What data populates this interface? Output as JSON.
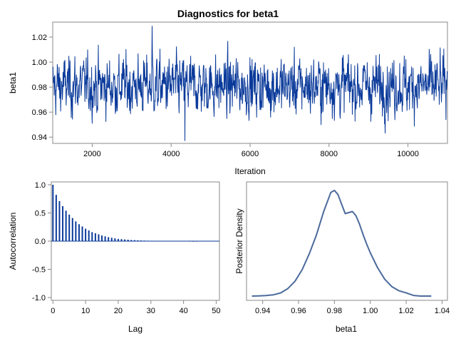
{
  "colors": {
    "trace": "#0a3a9a",
    "bars": "#0a3a9a",
    "density": "#4b6a9b",
    "frame": "#8a8a8a",
    "background": "#ffffff"
  },
  "chart_data": [
    {
      "type": "line",
      "name": "trace-plot",
      "title": "Diagnostics for beta1",
      "xlabel": "Iteration",
      "ylabel": "beta1",
      "xlim": [
        1000,
        11000
      ],
      "ylim": [
        0.935,
        1.032
      ],
      "xticks": [
        "2000",
        "4000",
        "6000",
        "8000",
        "10000"
      ],
      "xtick_values": [
        2000,
        4000,
        6000,
        8000,
        10000
      ],
      "yticks": [
        "0.94",
        "0.96",
        "0.98",
        "1.00",
        "1.02"
      ],
      "ytick_values": [
        0.94,
        0.96,
        0.98,
        1.0,
        1.02
      ],
      "series": {
        "name": "beta1",
        "iterations": [
          1000,
          11000
        ],
        "mean": 0.981,
        "sd": 0.0115,
        "min": 0.937,
        "max": 1.029,
        "min_at": 4350,
        "max_at": 3520
      }
    },
    {
      "type": "bar",
      "name": "autocorrelation-plot",
      "xlabel": "Lag",
      "ylabel": "Autocorrelation",
      "xlim": [
        -0.5,
        51
      ],
      "ylim": [
        -1.05,
        1.05
      ],
      "xticks": [
        "0",
        "10",
        "20",
        "30",
        "40",
        "50"
      ],
      "xtick_values": [
        0,
        10,
        20,
        30,
        40,
        50
      ],
      "yticks": [
        "1.0",
        "0.5",
        "0.0",
        "-0.5",
        "-1.0"
      ],
      "ytick_values": [
        1.0,
        0.5,
        0.0,
        -0.5,
        -1.0
      ],
      "lags": [
        0,
        1,
        2,
        3,
        4,
        5,
        6,
        7,
        8,
        9,
        10,
        11,
        12,
        13,
        14,
        15,
        16,
        17,
        18,
        19,
        20,
        21,
        22,
        23,
        24,
        25,
        26,
        27,
        28,
        29,
        30,
        31,
        32,
        33,
        34,
        35,
        36,
        37,
        38,
        39,
        40,
        41,
        42,
        43,
        44,
        45
      ],
      "values": [
        1.0,
        0.82,
        0.71,
        0.62,
        0.54,
        0.47,
        0.41,
        0.35,
        0.3,
        0.26,
        0.22,
        0.19,
        0.16,
        0.14,
        0.12,
        0.1,
        0.085,
        0.07,
        0.06,
        0.05,
        0.04,
        0.035,
        0.03,
        0.025,
        0.02,
        0.018,
        0.015,
        0.012,
        0.01,
        0.008,
        0.007,
        0.006,
        0.005,
        0.006,
        0.004,
        0.003,
        0.002,
        0.0,
        0.0,
        0.0,
        0.0,
        -0.005,
        -0.008,
        -0.01,
        -0.008,
        -0.005
      ]
    },
    {
      "type": "line",
      "name": "density-plot",
      "xlabel": "beta1",
      "ylabel": "Posterior Density",
      "xlim": [
        0.931,
        1.043
      ],
      "ylim": [
        0,
        1.08
      ],
      "xticks": [
        "0.94",
        "0.96",
        "0.98",
        "1.00",
        "1.02",
        "1.04"
      ],
      "xtick_values": [
        0.94,
        0.96,
        0.98,
        1.0,
        1.02,
        1.04
      ],
      "x": [
        0.934,
        0.938,
        0.942,
        0.946,
        0.95,
        0.954,
        0.958,
        0.962,
        0.966,
        0.97,
        0.974,
        0.978,
        0.98,
        0.982,
        0.984,
        0.986,
        0.988,
        0.99,
        0.992,
        0.994,
        0.996,
        0.998,
        1.0,
        1.004,
        1.008,
        1.012,
        1.016,
        1.02,
        1.024,
        1.028,
        1.034
      ],
      "y": [
        0.0,
        0.002,
        0.005,
        0.012,
        0.03,
        0.07,
        0.14,
        0.25,
        0.4,
        0.58,
        0.8,
        0.98,
        1.0,
        0.96,
        0.87,
        0.78,
        0.79,
        0.8,
        0.76,
        0.68,
        0.58,
        0.49,
        0.41,
        0.27,
        0.16,
        0.09,
        0.05,
        0.03,
        0.006,
        0.0,
        0.0
      ]
    }
  ]
}
